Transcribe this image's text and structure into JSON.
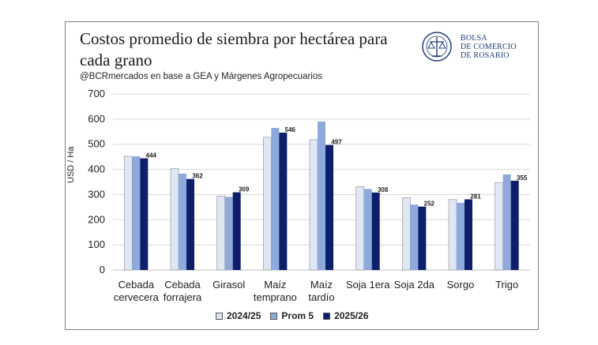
{
  "header": {
    "title": "Costos promedio de siembra por hectárea para cada grano",
    "subtitle": "@BCRmercados en base a GEA y Márgenes Agropecuarios",
    "logo_text_1": "BOLSA",
    "logo_text_2": "DE COMERCIO",
    "logo_text_3": "DE ROSARIO"
  },
  "colors": {
    "series_2024_25": "#dfe6f4",
    "series_prom5": "#8ea9db",
    "series_2025_26": "#0d1f6b",
    "brand": "#1f3f7a",
    "grid": "#d9d9d9"
  },
  "chart_data": {
    "type": "bar",
    "ylabel": "USD / Ha",
    "ylim": [
      0,
      700
    ],
    "yticks": [
      0,
      100,
      200,
      300,
      400,
      500,
      600,
      700
    ],
    "grid": true,
    "legend_position": "bottom",
    "categories": [
      [
        "Cebada",
        "cervecera"
      ],
      [
        "Cebada",
        "forrajera"
      ],
      [
        "Girasol"
      ],
      [
        "Maíz",
        "temprano"
      ],
      [
        "Maíz",
        "tardío"
      ],
      [
        "Soja 1era"
      ],
      [
        "Soja 2da"
      ],
      [
        "Sorgo"
      ],
      [
        "Trigo"
      ]
    ],
    "series": [
      {
        "name": "2024/25",
        "values": [
          452,
          403,
          294,
          528,
          518,
          332,
          288,
          280,
          348
        ]
      },
      {
        "name": "Prom 5",
        "values": [
          452,
          383,
          291,
          565,
          590,
          322,
          260,
          267,
          380
        ]
      },
      {
        "name": "2025/26",
        "values": [
          444,
          362,
          309,
          546,
          497,
          308,
          252,
          281,
          355
        ]
      }
    ],
    "data_labels": [
      "444",
      "362",
      "309",
      "546",
      "497",
      "308",
      "252",
      "281",
      "355"
    ]
  }
}
